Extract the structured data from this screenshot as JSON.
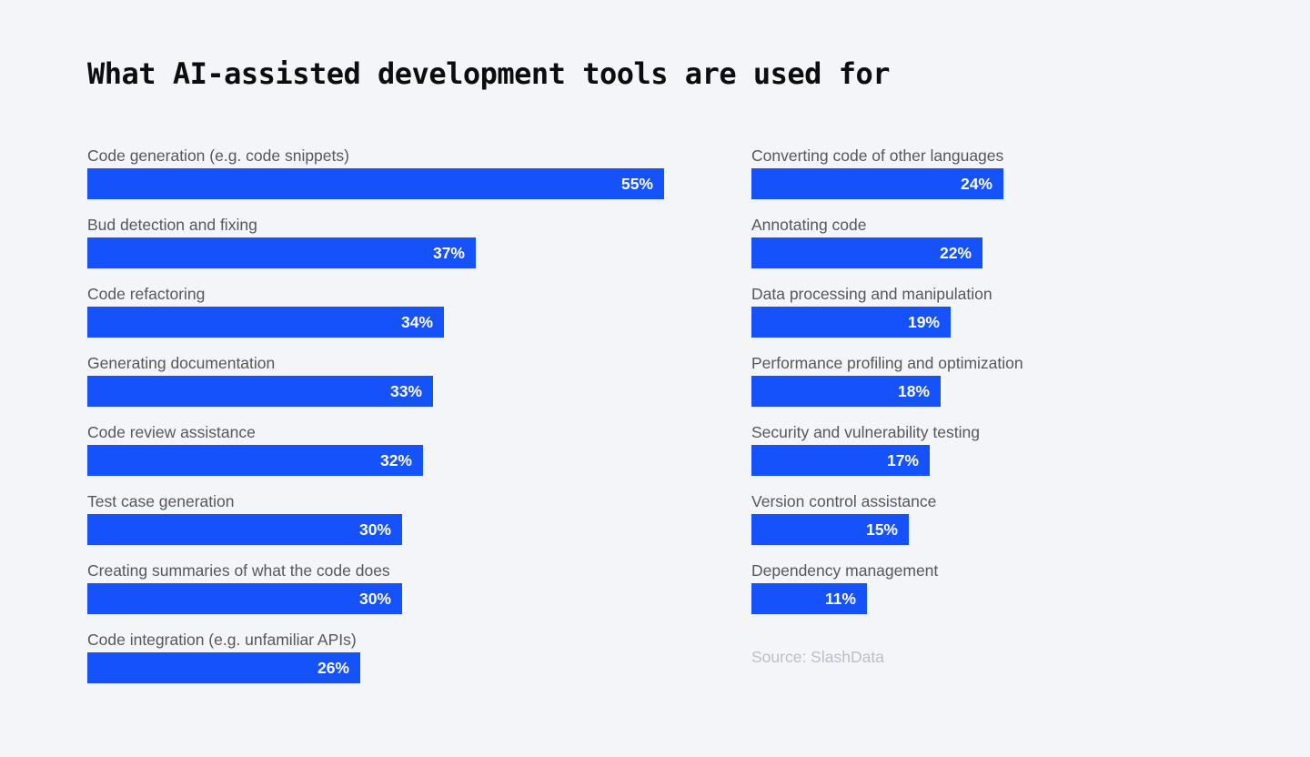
{
  "title": "What AI-assisted development tools are used for",
  "source": "Source: SlashData",
  "colors": {
    "bar": "#1552fa",
    "background": "#f4f5f8",
    "label_text": "#53575f",
    "value_text": "#ffffff",
    "title_text": "#0c0d0f",
    "source_text": "#b9bfc9"
  },
  "chart_data": {
    "type": "bar",
    "orientation": "horizontal",
    "unit": "%",
    "value_range": [
      0,
      55
    ],
    "grid": false,
    "legend": false,
    "title": "What AI-assisted development tools are used for",
    "columns": [
      {
        "name": "left",
        "items": [
          {
            "label": "Code generation (e.g. code snippets)",
            "value": 55
          },
          {
            "label": "Bud detection and fixing",
            "value": 37
          },
          {
            "label": "Code refactoring",
            "value": 34
          },
          {
            "label": "Generating documentation",
            "value": 33
          },
          {
            "label": "Code review assistance",
            "value": 32
          },
          {
            "label": "Test case generation",
            "value": 30
          },
          {
            "label": "Creating summaries of what the code does",
            "value": 30
          },
          {
            "label": "Code integration (e.g. unfamiliar APIs)",
            "value": 26
          }
        ]
      },
      {
        "name": "right",
        "items": [
          {
            "label": "Converting code of other languages",
            "value": 24
          },
          {
            "label": "Annotating code",
            "value": 22
          },
          {
            "label": "Data processing and manipulation",
            "value": 19
          },
          {
            "label": "Performance profiling and optimization",
            "value": 18
          },
          {
            "label": "Security and vulnerability testing",
            "value": 17
          },
          {
            "label": "Version control assistance",
            "value": 15
          },
          {
            "label": "Dependency management",
            "value": 11
          }
        ]
      }
    ]
  }
}
